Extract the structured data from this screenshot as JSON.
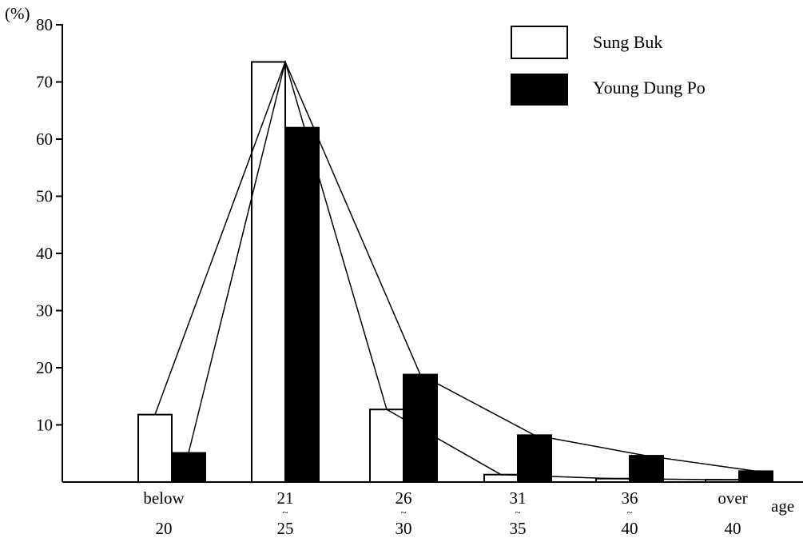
{
  "chart_data": {
    "type": "bar",
    "title": "",
    "ylabel": "(%)",
    "xlabel": "age",
    "ylim": [
      0,
      80
    ],
    "yticks": [
      10,
      20,
      30,
      40,
      50,
      60,
      70,
      80
    ],
    "categories": [
      {
        "line1": "below",
        "mark": "",
        "line2": "20"
      },
      {
        "line1": "21",
        "mark": "~",
        "line2": "25"
      },
      {
        "line1": "26",
        "mark": "~",
        "line2": "30"
      },
      {
        "line1": "31",
        "mark": "~",
        "line2": "35"
      },
      {
        "line1": "36",
        "mark": "~",
        "line2": "40"
      },
      {
        "line1": "over",
        "mark": "",
        "line2": "40"
      }
    ],
    "series": [
      {
        "name": "Sung Buk",
        "fill": "#ffffff",
        "values": [
          11.8,
          73.5,
          12.7,
          1.3,
          0.6,
          0.4
        ]
      },
      {
        "name": "Young Dung Po",
        "fill": "#000000",
        "values": [
          5.1,
          62.0,
          18.8,
          8.2,
          4.6,
          1.9
        ]
      }
    ],
    "connecting_line": "peak-to-peak polyline across bar tops",
    "legend_position": "top-right",
    "grid": false
  }
}
